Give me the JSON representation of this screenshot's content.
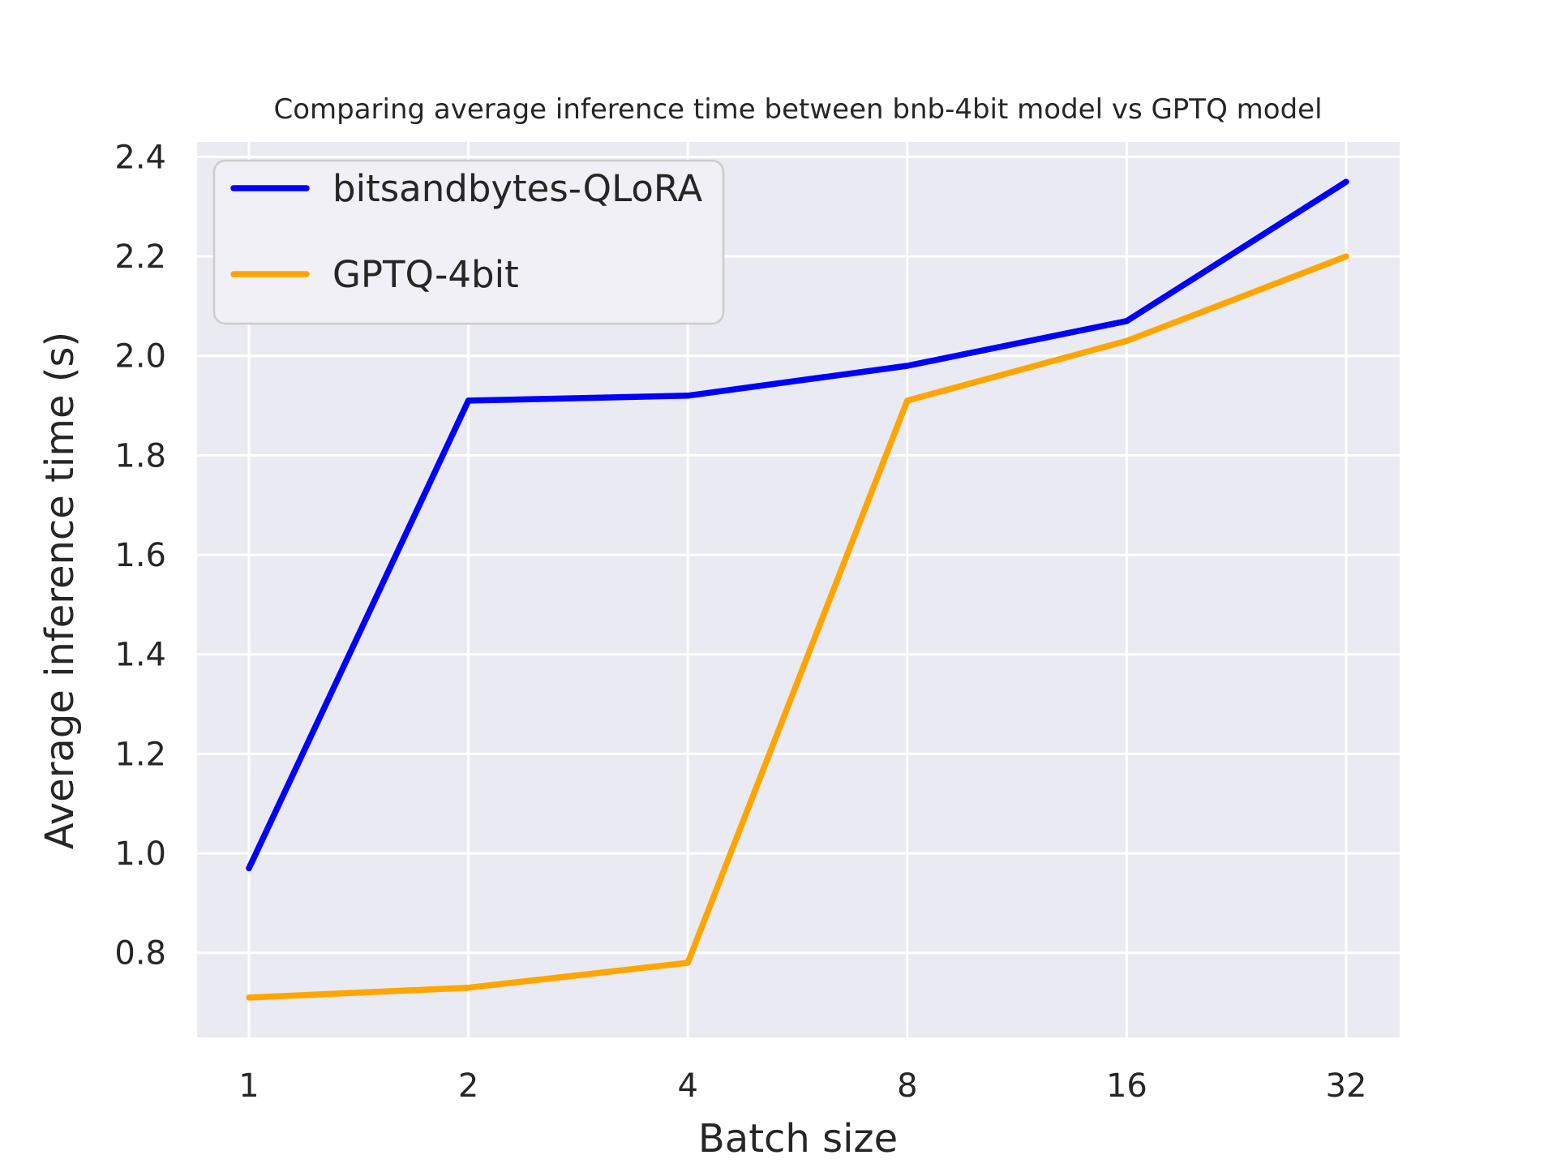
{
  "figure": {
    "background_color": "#ffffff",
    "plot_background_color": "#eaeaf2",
    "grid_color": "#ffffff",
    "text_color": "#262626",
    "legend_border_color": "#cccccc",
    "legend_fill_color": "#f0f0f6"
  },
  "chart_data": {
    "type": "line",
    "title": "Comparing average inference time between bnb-4bit model vs GPTQ model",
    "xlabel": "Batch size",
    "ylabel": "Average inference time (s)",
    "categories": [
      "1",
      "2",
      "4",
      "8",
      "16",
      "32"
    ],
    "series": [
      {
        "name": "bitsandbytes-QLoRA",
        "color": "#0000ff",
        "values": [
          0.97,
          1.91,
          1.92,
          1.98,
          2.07,
          2.35
        ]
      },
      {
        "name": "GPTQ-4bit",
        "color": "#ffa500",
        "values": [
          0.71,
          0.73,
          0.78,
          1.91,
          2.03,
          2.2
        ]
      }
    ],
    "yticks": [
      0.8,
      1.0,
      1.2,
      1.4,
      1.6,
      1.8,
      2.0,
      2.2,
      2.4
    ],
    "ytick_labels": [
      "0.8",
      "1.0",
      "1.2",
      "1.4",
      "1.6",
      "1.8",
      "2.0",
      "2.2",
      "2.4"
    ],
    "ylim": [
      0.63,
      2.43
    ],
    "grid": true,
    "legend_position": "upper left"
  }
}
